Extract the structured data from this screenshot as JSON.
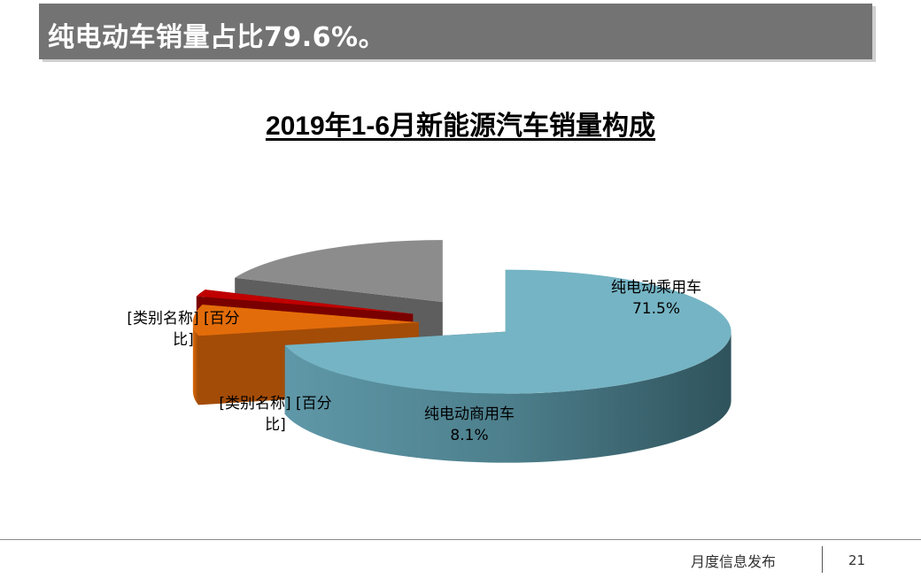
{
  "header": {
    "title": "纯电动车销量占比79.6%。"
  },
  "chart_data": {
    "type": "pie",
    "title": "2019年1-6月新能源汽车销量构成",
    "slices": [
      {
        "name": "纯电动乘用车",
        "value": 71.5,
        "label": "纯电动乘用车\n71.5%",
        "color": "#75b4c4"
      },
      {
        "name": "纯电动商用车",
        "value": 8.1,
        "label": "纯电动商用车\n8.1%",
        "color": "#e36c0a"
      },
      {
        "name": "",
        "value": 1.8,
        "label": "[类别名称] [百分\n比]",
        "color": "#c00000"
      },
      {
        "name": "",
        "value": 18.6,
        "label": "[类别名称] [百分\n比]",
        "color": "#8c8c8c"
      }
    ],
    "legend": "none",
    "style": "3d-exploded"
  },
  "footer": {
    "publisher": "月度信息发布",
    "page": "21"
  }
}
